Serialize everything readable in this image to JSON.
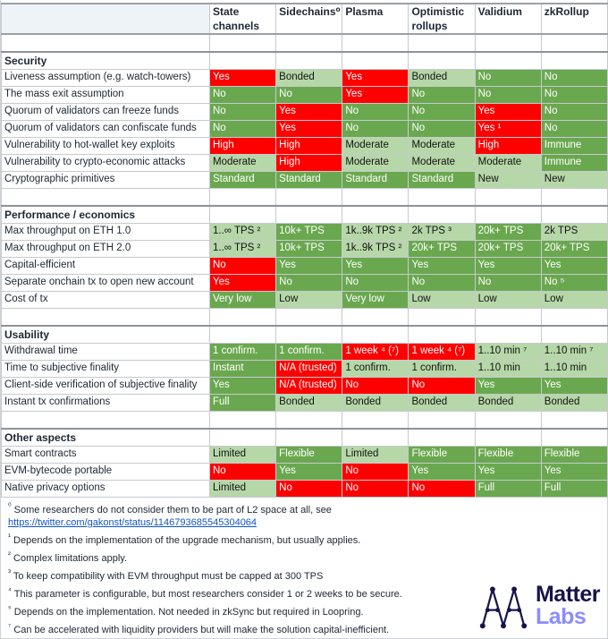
{
  "chart_data": {
    "type": "table",
    "columns": [
      "State channels",
      "Sidechains⁰",
      "Plasma",
      "Optimistic rollups",
      "Validium",
      "zkRollup"
    ],
    "sections": [
      {
        "title": "Security",
        "rows": [
          {
            "label": "Liveness assumption (e.g. watch-towers)",
            "cells": [
              [
                "Yes",
                "red"
              ],
              [
                "Bonded",
                "lgreen"
              ],
              [
                "Yes",
                "red"
              ],
              [
                "Bonded",
                "lgreen"
              ],
              [
                "No",
                "green"
              ],
              [
                "No",
                "green"
              ]
            ]
          },
          {
            "label": "The mass exit assumption",
            "cells": [
              [
                "No",
                "green"
              ],
              [
                "No",
                "green"
              ],
              [
                "Yes",
                "red"
              ],
              [
                "No",
                "green"
              ],
              [
                "No",
                "green"
              ],
              [
                "No",
                "green"
              ]
            ]
          },
          {
            "label": "Quorum of validators can freeze funds",
            "cells": [
              [
                "No",
                "green"
              ],
              [
                "Yes",
                "red"
              ],
              [
                "No",
                "green"
              ],
              [
                "No",
                "green"
              ],
              [
                "Yes",
                "red"
              ],
              [
                "No",
                "green"
              ]
            ]
          },
          {
            "label": "Quorum of validators can confiscate funds",
            "cells": [
              [
                "No",
                "green"
              ],
              [
                "Yes",
                "red"
              ],
              [
                "No",
                "green"
              ],
              [
                "No",
                "green"
              ],
              [
                "Yes ¹",
                "red"
              ],
              [
                "No",
                "green"
              ]
            ]
          },
          {
            "label": "Vulnerability to hot-wallet key exploits",
            "cells": [
              [
                "High",
                "red"
              ],
              [
                "High",
                "red"
              ],
              [
                "Moderate",
                "lgreen"
              ],
              [
                "Moderate",
                "lgreen"
              ],
              [
                "High",
                "red"
              ],
              [
                "Immune",
                "green"
              ]
            ]
          },
          {
            "label": "Vulnerability to crypto-economic attacks",
            "cells": [
              [
                "Moderate",
                "lgreen"
              ],
              [
                "High",
                "red"
              ],
              [
                "Moderate",
                "lgreen"
              ],
              [
                "Moderate",
                "lgreen"
              ],
              [
                "Moderate",
                "lgreen"
              ],
              [
                "Immune",
                "green"
              ]
            ]
          },
          {
            "label": "Cryptographic primitives",
            "cells": [
              [
                "Standard",
                "green"
              ],
              [
                "Standard",
                "green"
              ],
              [
                "Standard",
                "green"
              ],
              [
                "Standard",
                "green"
              ],
              [
                "New",
                "lgreen"
              ],
              [
                "New",
                "lgreen"
              ]
            ]
          }
        ]
      },
      {
        "title": "Performance / economics",
        "rows": [
          {
            "label": "Max throughput on ETH 1.0",
            "cells": [
              [
                "1..∞ TPS ²",
                "lgreen"
              ],
              [
                "10k+ TPS",
                "green"
              ],
              [
                "1k..9k TPS ²",
                "lgreen"
              ],
              [
                "2k TPS ³",
                "lgreen"
              ],
              [
                "20k+ TPS",
                "green"
              ],
              [
                "2k TPS",
                "lgreen"
              ]
            ]
          },
          {
            "label": "Max throughput on ETH 2.0",
            "cells": [
              [
                "1..∞ TPS ²",
                "lgreen"
              ],
              [
                "10k+ TPS",
                "green"
              ],
              [
                "1k..9k TPS ²",
                "lgreen"
              ],
              [
                "20k+ TPS",
                "green"
              ],
              [
                "20k+ TPS",
                "green"
              ],
              [
                "20k+ TPS",
                "green"
              ]
            ]
          },
          {
            "label": "Capital-efficient",
            "cells": [
              [
                "No",
                "red"
              ],
              [
                "Yes",
                "green"
              ],
              [
                "Yes",
                "green"
              ],
              [
                "Yes",
                "green"
              ],
              [
                "Yes",
                "green"
              ],
              [
                "Yes",
                "green"
              ]
            ]
          },
          {
            "label": "Separate onchain tx to open new account",
            "cells": [
              [
                "Yes",
                "red"
              ],
              [
                "No",
                "green"
              ],
              [
                "No",
                "green"
              ],
              [
                "No",
                "green"
              ],
              [
                "No",
                "green"
              ],
              [
                "No ⁵",
                "green"
              ]
            ]
          },
          {
            "label": "Cost of tx",
            "cells": [
              [
                "Very low",
                "green"
              ],
              [
                "Low",
                "lgreen"
              ],
              [
                "Very low",
                "green"
              ],
              [
                "Low",
                "lgreen"
              ],
              [
                "Low",
                "lgreen"
              ],
              [
                "Low",
                "lgreen"
              ]
            ]
          }
        ]
      },
      {
        "title": "Usability",
        "rows": [
          {
            "label": "Withdrawal time",
            "cells": [
              [
                "1 confirm.",
                "green"
              ],
              [
                "1 confirm.",
                "green"
              ],
              [
                "1 week ⁴ (⁷)",
                "red"
              ],
              [
                "1 week ⁴ (⁷)",
                "red"
              ],
              [
                "1..10 min ⁷",
                "lgreen"
              ],
              [
                "1..10 min ⁷",
                "lgreen"
              ]
            ]
          },
          {
            "label": "Time to subjective finality",
            "cells": [
              [
                "Instant",
                "green"
              ],
              [
                "N/A (trusted)",
                "red"
              ],
              [
                "1 confirm.",
                "lgreen"
              ],
              [
                "1 confirm.",
                "lgreen"
              ],
              [
                "1..10 min",
                "lgreen"
              ],
              [
                "1..10 min",
                "lgreen"
              ]
            ]
          },
          {
            "label": "Client-side verification of subjective finality",
            "cells": [
              [
                "Yes",
                "green"
              ],
              [
                "N/A (trusted)",
                "red"
              ],
              [
                "No",
                "red"
              ],
              [
                "No",
                "red"
              ],
              [
                "Yes",
                "green"
              ],
              [
                "Yes",
                "green"
              ]
            ]
          },
          {
            "label": "Instant tx confirmations",
            "cells": [
              [
                "Full",
                "green"
              ],
              [
                "Bonded",
                "lgreen"
              ],
              [
                "Bonded",
                "lgreen"
              ],
              [
                "Bonded",
                "lgreen"
              ],
              [
                "Bonded",
                "lgreen"
              ],
              [
                "Bonded",
                "lgreen"
              ]
            ]
          }
        ]
      },
      {
        "title": "Other aspects",
        "rows": [
          {
            "label": "Smart contracts",
            "cells": [
              [
                "Limited",
                "lgreen"
              ],
              [
                "Flexible",
                "green"
              ],
              [
                "Limited",
                "lgreen"
              ],
              [
                "Flexible",
                "green"
              ],
              [
                "Flexible",
                "green"
              ],
              [
                "Flexible",
                "green"
              ]
            ]
          },
          {
            "label": "EVM-bytecode portable",
            "cells": [
              [
                "No",
                "red"
              ],
              [
                "Yes",
                "green"
              ],
              [
                "No",
                "red"
              ],
              [
                "Yes",
                "green"
              ],
              [
                "Yes",
                "green"
              ],
              [
                "Yes",
                "green"
              ]
            ]
          },
          {
            "label": "Native privacy options",
            "cells": [
              [
                "Limited",
                "lgreen"
              ],
              [
                "No",
                "red"
              ],
              [
                "No",
                "red"
              ],
              [
                "No",
                "red"
              ],
              [
                "Full",
                "green"
              ],
              [
                "Full",
                "green"
              ]
            ]
          }
        ]
      }
    ],
    "legend_colors": {
      "red": "#ff0000",
      "green": "#6aa84f",
      "light_green": "#b6d7a8"
    }
  },
  "footnotes": [
    {
      "marker": "⁰",
      "text": "Some researchers do not consider them to be part of L2 space at all, see",
      "link": "https://twitter.com/gakonst/status/1146793685545304064"
    },
    {
      "marker": "¹",
      "text": "Depends on the implementation of the upgrade mechanism, but usually applies."
    },
    {
      "marker": "²",
      "text": "Complex limitations apply."
    },
    {
      "marker": "³",
      "text": "To keep compatibility with EVM throughput must be capped at 300 TPS"
    },
    {
      "marker": "⁴",
      "text": "This parameter is configurable, but most researchers consider 1 or 2 weeks to be secure."
    },
    {
      "marker": "⁵",
      "text": "Depends on the implementation. Not needed in zkSync but required in Loopring."
    },
    {
      "marker": "⁷",
      "text": "Can be accelerated with liquidity providers but will make the solution capital-inefficient."
    }
  ],
  "logo": {
    "word1": "Matter",
    "word2": "Labs",
    "navy": "#17144a",
    "purple": "#8c8dfc"
  }
}
